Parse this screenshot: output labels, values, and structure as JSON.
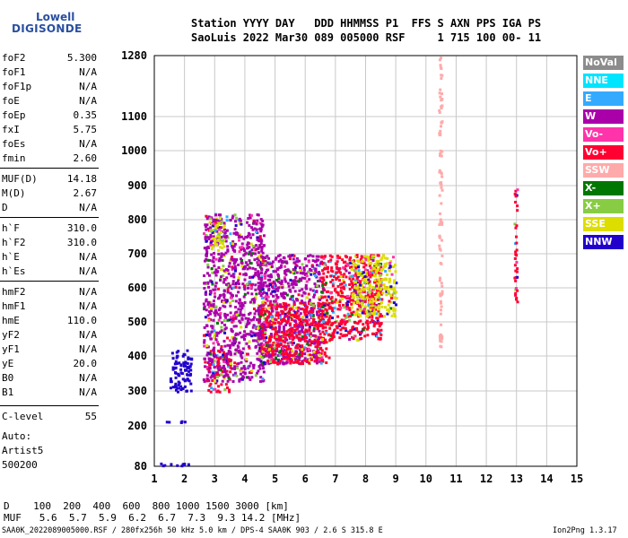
{
  "logo": {
    "line1": "Lowell",
    "line2": "DIGISONDE"
  },
  "header": {
    "row1": "Station YYYY DAY   DDD HHMMSS P1  FFS S AXN PPS IGA PS",
    "row2": "SaoLuis 2022 Mar30 089 005000 RSF     1 715 100 00- 11"
  },
  "params": [
    {
      "k": "foF2",
      "v": "5.300"
    },
    {
      "k": "foF1",
      "v": "N/A"
    },
    {
      "k": "foF1p",
      "v": "N/A"
    },
    {
      "k": "foE",
      "v": "N/A"
    },
    {
      "k": "foEp",
      "v": "0.35"
    },
    {
      "k": "fxI",
      "v": "5.75"
    },
    {
      "k": "foEs",
      "v": "N/A"
    },
    {
      "k": "fmin",
      "v": "2.60"
    },
    {
      "k": "MUF(D)",
      "v": "14.18"
    },
    {
      "k": "M(D)",
      "v": "2.67"
    },
    {
      "k": "D",
      "v": "N/A"
    },
    {
      "k": "h`F",
      "v": "310.0"
    },
    {
      "k": "h`F2",
      "v": "310.0"
    },
    {
      "k": "h`E",
      "v": "N/A"
    },
    {
      "k": "h`Es",
      "v": "N/A"
    },
    {
      "k": "hmF2",
      "v": "N/A"
    },
    {
      "k": "hmF1",
      "v": "N/A"
    },
    {
      "k": "hmE",
      "v": "110.0"
    },
    {
      "k": "yF2",
      "v": "N/A"
    },
    {
      "k": "yF1",
      "v": "N/A"
    },
    {
      "k": "yE",
      "v": "20.0"
    },
    {
      "k": "B0",
      "v": "N/A"
    },
    {
      "k": "B1",
      "v": "N/A"
    },
    {
      "k": "C-level",
      "v": "55"
    }
  ],
  "autoscale": {
    "line1": "Auto:",
    "line2": "Artist5",
    "line3": "500200"
  },
  "legend": [
    {
      "label": "NoVal",
      "color": "#8c8c8c"
    },
    {
      "label": "NNE",
      "color": "#00e5ff"
    },
    {
      "label": "E",
      "color": "#33aaff"
    },
    {
      "label": "W",
      "color": "#aa00aa"
    },
    {
      "label": "Vo-",
      "color": "#ff33aa"
    },
    {
      "label": "Vo+",
      "color": "#ff0033"
    },
    {
      "label": "SSW",
      "color": "#ffaaaa"
    },
    {
      "label": "X-",
      "color": "#007700"
    },
    {
      "label": "X+",
      "color": "#88cc44"
    },
    {
      "label": "SSE",
      "color": "#dddd00"
    },
    {
      "label": "NNW",
      "color": "#2200cc"
    }
  ],
  "bottom": {
    "d_row": "D    100  200  400  600  800 1000 1500 3000 [km]",
    "muf_row": "MUF   5.6  5.7  5.9  6.2  6.7  7.3  9.3 14.2 [MHz]",
    "footer": "SAA0K_2022089005000.RSF / 280fx256h 50 kHz 5.0 km / DPS-4 SAA0K 903 / 2.6 S 315.8 E",
    "version": "Ion2Png 1.3.17"
  },
  "chart_data": {
    "type": "scatter",
    "title": "",
    "xlabel": "",
    "ylabel": "",
    "xlim": [
      1,
      15
    ],
    "ylim": [
      80,
      1280
    ],
    "x_ticks": [
      "1",
      "2",
      "3",
      "4",
      "5",
      "6",
      "7",
      "8",
      "9",
      "10",
      "11",
      "12",
      "13",
      "14",
      "15"
    ],
    "y_ticks": [
      "80",
      "200",
      "300",
      "400",
      "500",
      "600",
      "700",
      "800",
      "900",
      "1000",
      "1100",
      "1280"
    ],
    "grid": true,
    "note_scale": "reciprocal height axis (virtual height, km) vs frequency (MHz)",
    "regions": [
      {
        "series": "NNW",
        "x": [
          1.0,
          2.1
        ],
        "y": [
          83,
          92
        ]
      },
      {
        "series": "NNW",
        "x": [
          1.2,
          2.0
        ],
        "y": [
          212,
          218
        ]
      },
      {
        "series": "NNW",
        "x": [
          1.5,
          2.2
        ],
        "y": [
          300,
          420
        ]
      },
      {
        "series": "Vo+",
        "x": [
          2.7,
          3.5
        ],
        "y": [
          300,
          420
        ]
      },
      {
        "series": "W",
        "x": [
          2.6,
          4.6
        ],
        "y": [
          330,
          820
        ]
      },
      {
        "series": "SSE",
        "x": [
          2.8,
          3.3
        ],
        "y": [
          720,
          800
        ]
      },
      {
        "series": "W",
        "x": [
          4.4,
          6.5
        ],
        "y": [
          380,
          700
        ]
      },
      {
        "series": "Vo+",
        "x": [
          4.5,
          6.8
        ],
        "y": [
          380,
          560
        ]
      },
      {
        "series": "Vo+",
        "x": [
          6.5,
          8.5
        ],
        "y": [
          450,
          700
        ]
      },
      {
        "series": "SSE",
        "x": [
          7.5,
          9.0
        ],
        "y": [
          520,
          700
        ]
      },
      {
        "series": "SSW",
        "x": [
          10.4,
          10.5
        ],
        "y": [
          430,
          1280
        ]
      },
      {
        "series": "Vo+",
        "x": [
          12.9,
          13.0
        ],
        "y": [
          560,
          900
        ]
      }
    ]
  }
}
